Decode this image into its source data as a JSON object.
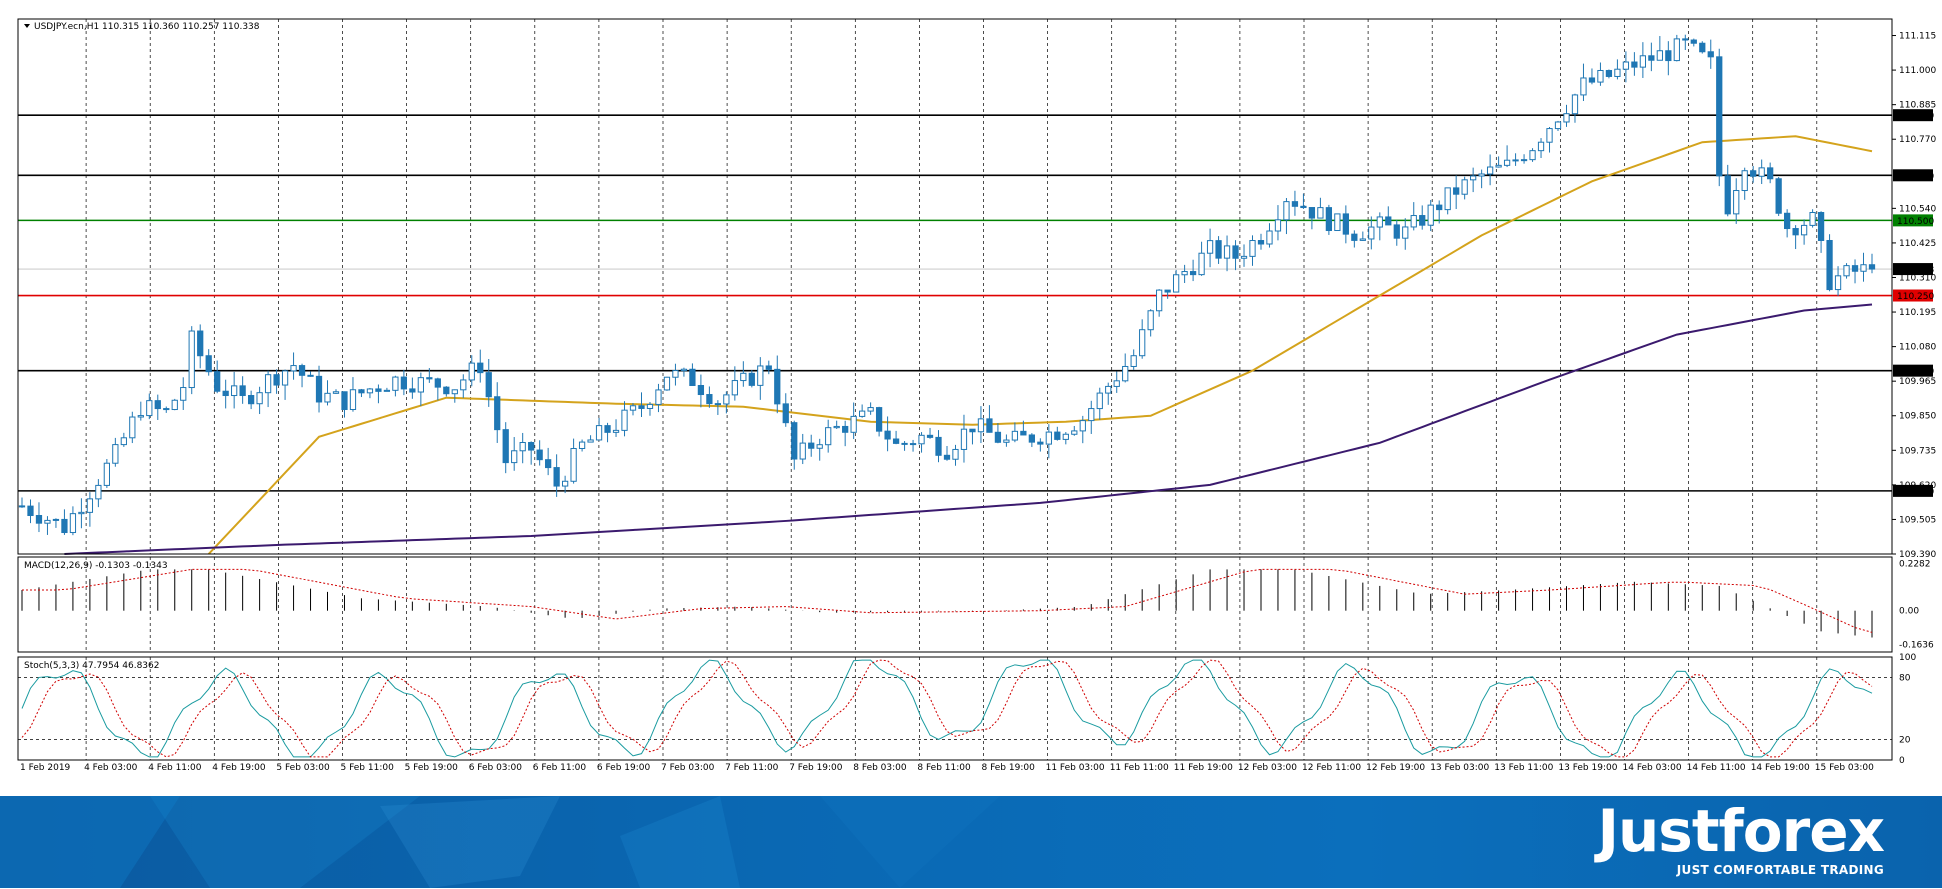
{
  "main_label": "USDJPY.ecn,H1  110.315 110.360 110.257 110.338",
  "macd_label": "MACD(12,26,9) -0.1303 -0.1343",
  "stoch_label": "Stoch(5,3,3) 47.7954 46.8362",
  "brand": {
    "name": "Justforex",
    "tagline": "JUST COMFORTABLE TRADING"
  },
  "colors": {
    "bull": "#ffffff",
    "bear": "#1f77b4",
    "candle_outline": "#1f77b4",
    "ma_fast": "#d4a31c",
    "ma_slow": "#3b1a6e",
    "level_black": "#000000",
    "level_green": "#008000",
    "level_red": "#e00000",
    "macd_signal": "#d00000",
    "stoch_main": "#1a9ba0",
    "stoch_signal": "#d00000",
    "banner": "#0a68b3"
  },
  "chart_data": {
    "type": "candlestick",
    "symbol": "USDJPY.ecn",
    "timeframe": "H1",
    "price_axis": {
      "ylim": [
        109.39,
        111.17
      ],
      "ticks": [
        "111.115",
        "111.000",
        "110.885",
        "110.770",
        "110.540",
        "110.425",
        "110.310",
        "110.195",
        "110.080",
        "109.965",
        "109.850",
        "109.735",
        "109.620",
        "109.505",
        "109.390"
      ]
    },
    "current_price": "110.338",
    "horizontal_levels": [
      {
        "value": 110.85,
        "label": "110.850",
        "color": "black"
      },
      {
        "value": 110.65,
        "label": "110.650",
        "color": "black"
      },
      {
        "value": 110.5,
        "label": "110.500",
        "color": "green"
      },
      {
        "value": 110.25,
        "label": "110.250",
        "color": "red"
      },
      {
        "value": 110.0,
        "label": "110.000",
        "color": "black"
      },
      {
        "value": 109.6,
        "label": "109.600",
        "color": "black"
      }
    ],
    "time_labels": [
      "1 Feb 2019",
      "4 Feb 03:00",
      "4 Feb 11:00",
      "4 Feb 19:00",
      "5 Feb 03:00",
      "5 Feb 11:00",
      "5 Feb 19:00",
      "6 Feb 03:00",
      "6 Feb 11:00",
      "6 Feb 19:00",
      "7 Feb 03:00",
      "7 Feb 11:00",
      "7 Feb 19:00",
      "8 Feb 03:00",
      "8 Feb 11:00",
      "8 Feb 19:00",
      "11 Feb 03:00",
      "11 Feb 11:00",
      "11 Feb 19:00",
      "12 Feb 03:00",
      "12 Feb 11:00",
      "12 Feb 19:00",
      "13 Feb 03:00",
      "13 Feb 11:00",
      "13 Feb 19:00",
      "14 Feb 03:00",
      "14 Feb 11:00",
      "14 Feb 19:00",
      "15 Feb 03:00"
    ],
    "close_path": [
      [
        0,
        109.55
      ],
      [
        5,
        109.48
      ],
      [
        8,
        109.6
      ],
      [
        11,
        109.72
      ],
      [
        14,
        109.88
      ],
      [
        17,
        109.86
      ],
      [
        19,
        109.95
      ],
      [
        20,
        110.1
      ],
      [
        23,
        109.95
      ],
      [
        26,
        109.9
      ],
      [
        29,
        109.97
      ],
      [
        32,
        110.02
      ],
      [
        35,
        109.92
      ],
      [
        38,
        109.9
      ],
      [
        41,
        109.94
      ],
      [
        44,
        109.97
      ],
      [
        47,
        109.96
      ],
      [
        51,
        109.95
      ],
      [
        54,
        110.02
      ],
      [
        57,
        109.7
      ],
      [
        60,
        109.74
      ],
      [
        63,
        109.62
      ],
      [
        66,
        109.75
      ],
      [
        70,
        109.82
      ],
      [
        73,
        109.88
      ],
      [
        76,
        109.99
      ],
      [
        79,
        109.97
      ],
      [
        82,
        109.9
      ],
      [
        85,
        109.96
      ],
      [
        88,
        110.02
      ],
      [
        91,
        109.7
      ],
      [
        94,
        109.78
      ],
      [
        97,
        109.82
      ],
      [
        100,
        109.85
      ],
      [
        103,
        109.75
      ],
      [
        106,
        109.78
      ],
      [
        109,
        109.74
      ],
      [
        112,
        109.82
      ],
      [
        116,
        109.76
      ],
      [
        119,
        109.78
      ],
      [
        122,
        109.8
      ],
      [
        125,
        109.84
      ],
      [
        128,
        109.95
      ],
      [
        131,
        110.05
      ],
      [
        134,
        110.25
      ],
      [
        137,
        110.33
      ],
      [
        140,
        110.4
      ],
      [
        143,
        110.38
      ],
      [
        146,
        110.45
      ],
      [
        149,
        110.58
      ],
      [
        151,
        110.55
      ],
      [
        154,
        110.5
      ],
      [
        157,
        110.46
      ],
      [
        160,
        110.48
      ],
      [
        163,
        110.46
      ],
      [
        166,
        110.53
      ],
      [
        169,
        110.6
      ],
      [
        172,
        110.65
      ],
      [
        175,
        110.68
      ],
      [
        178,
        110.75
      ],
      [
        181,
        110.85
      ],
      [
        184,
        110.95
      ],
      [
        187,
        110.98
      ],
      [
        190,
        111.02
      ],
      [
        193,
        111.05
      ],
      [
        196,
        111.08
      ],
      [
        199,
        111.02
      ],
      [
        200,
        110.65
      ],
      [
        201,
        110.55
      ],
      [
        203,
        110.7
      ],
      [
        206,
        110.62
      ],
      [
        208,
        110.48
      ],
      [
        211,
        110.5
      ],
      [
        213,
        110.3
      ],
      [
        216,
        110.33
      ],
      [
        218,
        110.338
      ]
    ],
    "moving_averages": [
      {
        "color": "gold",
        "points": [
          [
            22,
            109.39
          ],
          [
            35,
            109.78
          ],
          [
            50,
            109.91
          ],
          [
            70,
            109.89
          ],
          [
            85,
            109.88
          ],
          [
            100,
            109.83
          ],
          [
            112,
            109.82
          ],
          [
            123,
            109.83
          ],
          [
            133,
            109.85
          ],
          [
            145,
            110.0
          ],
          [
            160,
            110.25
          ],
          [
            172,
            110.45
          ],
          [
            185,
            110.63
          ],
          [
            198,
            110.76
          ],
          [
            209,
            110.78
          ],
          [
            218,
            110.73
          ]
        ]
      },
      {
        "color": "dark purple",
        "points": [
          [
            5,
            109.39
          ],
          [
            30,
            109.42
          ],
          [
            60,
            109.45
          ],
          [
            90,
            109.5
          ],
          [
            120,
            109.56
          ],
          [
            140,
            109.62
          ],
          [
            160,
            109.76
          ],
          [
            180,
            109.97
          ],
          [
            195,
            110.12
          ],
          [
            210,
            110.2
          ],
          [
            218,
            110.22
          ]
        ]
      }
    ],
    "macd": {
      "label": "MACD(12,26,9) -0.1303 -0.1343",
      "ticks": [
        "0.2282",
        "0.00",
        "-0.1636"
      ],
      "ylim": [
        -0.2,
        0.26
      ],
      "hist": [
        [
          0,
          0.1
        ],
        [
          15,
          0.2
        ],
        [
          22,
          0.2
        ],
        [
          40,
          0.06
        ],
        [
          55,
          0.02
        ],
        [
          65,
          -0.04
        ],
        [
          75,
          0.01
        ],
        [
          85,
          0.02
        ],
        [
          95,
          -0.01
        ],
        [
          115,
          0.0
        ],
        [
          125,
          0.02
        ],
        [
          140,
          0.2
        ],
        [
          150,
          0.2
        ],
        [
          165,
          0.08
        ],
        [
          175,
          0.1
        ],
        [
          190,
          0.14
        ],
        [
          200,
          0.12
        ],
        [
          205,
          0.03
        ],
        [
          212,
          -0.1
        ],
        [
          218,
          -0.13
        ]
      ]
    },
    "stochastic": {
      "label": "Stoch(5,3,3) 47.7954 46.8362",
      "ticks": [
        "100",
        "80",
        "20",
        "0"
      ],
      "levels": [
        80,
        20
      ]
    }
  }
}
